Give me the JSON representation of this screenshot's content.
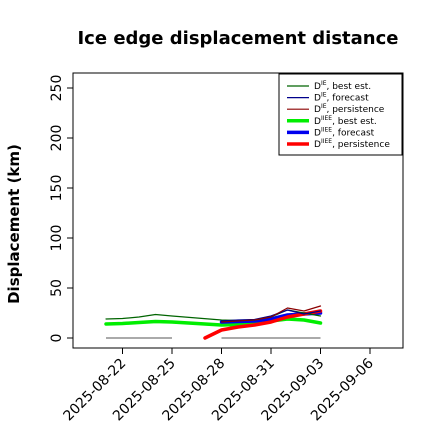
{
  "chart_data": {
    "type": "line",
    "title": "Ice edge displacement distance",
    "ylabel": "Displacement (km)",
    "xlabel": "",
    "ylim": [
      0,
      250
    ],
    "y_ticks": [
      0,
      50,
      100,
      150,
      200,
      250
    ],
    "x_ticks": [
      "2025-08-22",
      "2025-08-25",
      "2025-08-28",
      "2025-08-31",
      "2025-09-03",
      "2025-09-06"
    ],
    "x_tick_colors": [
      "#000000",
      "#000000",
      "#228B22",
      "#000000",
      "#000000",
      "#000000"
    ],
    "xlim": [
      "2025-08-19",
      "2025-09-08"
    ],
    "legend_position": "top-right",
    "grid": false,
    "series": [
      {
        "label_main": "D",
        "label_sup": "IE",
        "label_rest": ", best est.",
        "color": "#006400",
        "width": 1.2,
        "points": [
          [
            "2025-08-21",
            19
          ],
          [
            "2025-08-22",
            19.5
          ],
          [
            "2025-08-23",
            21
          ],
          [
            "2025-08-24",
            23.5
          ],
          [
            "2025-08-25",
            22
          ],
          [
            "2025-08-28",
            18
          ],
          [
            "2025-08-29",
            17.5
          ],
          [
            "2025-08-30",
            18
          ],
          [
            "2025-08-31",
            21
          ],
          [
            "2025-09-01",
            28
          ],
          [
            "2025-09-02",
            25
          ],
          [
            "2025-09-03",
            22
          ]
        ]
      },
      {
        "label_main": "D",
        "label_sup": "IE",
        "label_rest": ", forecast",
        "color": "#00008B",
        "width": 1.2,
        "points": [
          [
            "2025-08-28",
            17
          ],
          [
            "2025-08-29",
            18
          ],
          [
            "2025-08-30",
            18.5
          ],
          [
            "2025-08-31",
            22
          ],
          [
            "2025-09-01",
            28
          ],
          [
            "2025-09-02",
            24
          ],
          [
            "2025-09-03",
            27
          ]
        ]
      },
      {
        "label_main": "D",
        "label_sup": "IE",
        "label_rest": ", persistence",
        "color": "#8B0000",
        "width": 1.2,
        "points": [
          [
            "2025-08-28",
            16
          ],
          [
            "2025-08-29",
            17
          ],
          [
            "2025-08-30",
            18
          ],
          [
            "2025-08-31",
            21
          ],
          [
            "2025-09-01",
            30
          ],
          [
            "2025-09-02",
            27
          ],
          [
            "2025-09-03",
            32
          ]
        ]
      },
      {
        "label_main": "D",
        "label_sup": "IIEE",
        "label_rest": ", best est.",
        "color": "#00EE00",
        "width": 3.5,
        "points": [
          [
            "2025-08-21",
            14
          ],
          [
            "2025-08-22",
            14.5
          ],
          [
            "2025-08-23",
            15.5
          ],
          [
            "2025-08-24",
            16.5
          ],
          [
            "2025-08-25",
            16
          ],
          [
            "2025-08-28",
            13
          ],
          [
            "2025-08-29",
            13.5
          ],
          [
            "2025-08-30",
            15
          ],
          [
            "2025-08-31",
            17
          ],
          [
            "2025-09-01",
            19
          ],
          [
            "2025-09-02",
            18
          ],
          [
            "2025-09-03",
            15
          ]
        ]
      },
      {
        "label_main": "D",
        "label_sup": "IIEE",
        "label_rest": ", forecast",
        "color": "#0000EE",
        "width": 3.5,
        "points": [
          [
            "2025-08-28",
            16
          ],
          [
            "2025-08-29",
            16.5
          ],
          [
            "2025-08-30",
            17
          ],
          [
            "2025-08-31",
            19
          ],
          [
            "2025-09-01",
            23
          ],
          [
            "2025-09-02",
            24
          ],
          [
            "2025-09-03",
            25
          ]
        ]
      },
      {
        "label_main": "D",
        "label_sup": "IIEE",
        "label_rest": ", persistence",
        "color": "#FF0000",
        "width": 3.5,
        "points": [
          [
            "2025-08-27",
            0
          ],
          [
            "2025-08-28",
            8
          ],
          [
            "2025-08-29",
            11
          ],
          [
            "2025-08-30",
            13
          ],
          [
            "2025-08-31",
            16
          ],
          [
            "2025-09-01",
            21
          ],
          [
            "2025-09-02",
            24
          ],
          [
            "2025-09-03",
            27
          ]
        ]
      }
    ],
    "zero_lines": [
      {
        "color": "#555555",
        "from": "2025-08-21",
        "to": "2025-08-25"
      },
      {
        "color": "#555555",
        "from": "2025-08-28",
        "to": "2025-09-03"
      }
    ]
  }
}
